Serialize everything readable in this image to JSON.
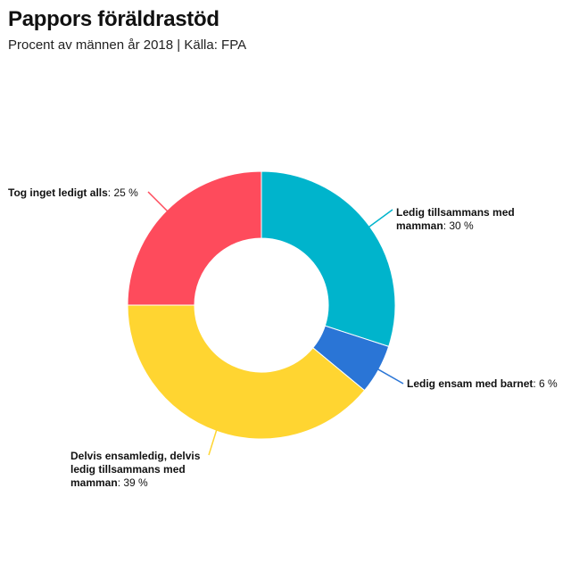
{
  "title": "Pappors föräldrastöd",
  "subtitle": "Procent av männen år 2018 | Källa: FPA",
  "chart_data": {
    "type": "pie",
    "variant": "donut",
    "unit": "%",
    "slices": [
      {
        "label": "Ledig tillsammans med mamman",
        "value": 30,
        "display": "30 %",
        "color": "#00b4cc"
      },
      {
        "label": "Ledig ensam med barnet",
        "value": 6,
        "display": "6 %",
        "color": "#2a75d6"
      },
      {
        "label": "Delvis ensamledig, delvis ledig tillsammans med mamman",
        "value": 39,
        "display": "39 %",
        "color": "#ffd531"
      },
      {
        "label": "Tog inget ledigt alls",
        "value": 25,
        "display": "25 %",
        "color": "#fe4b5c"
      }
    ]
  }
}
